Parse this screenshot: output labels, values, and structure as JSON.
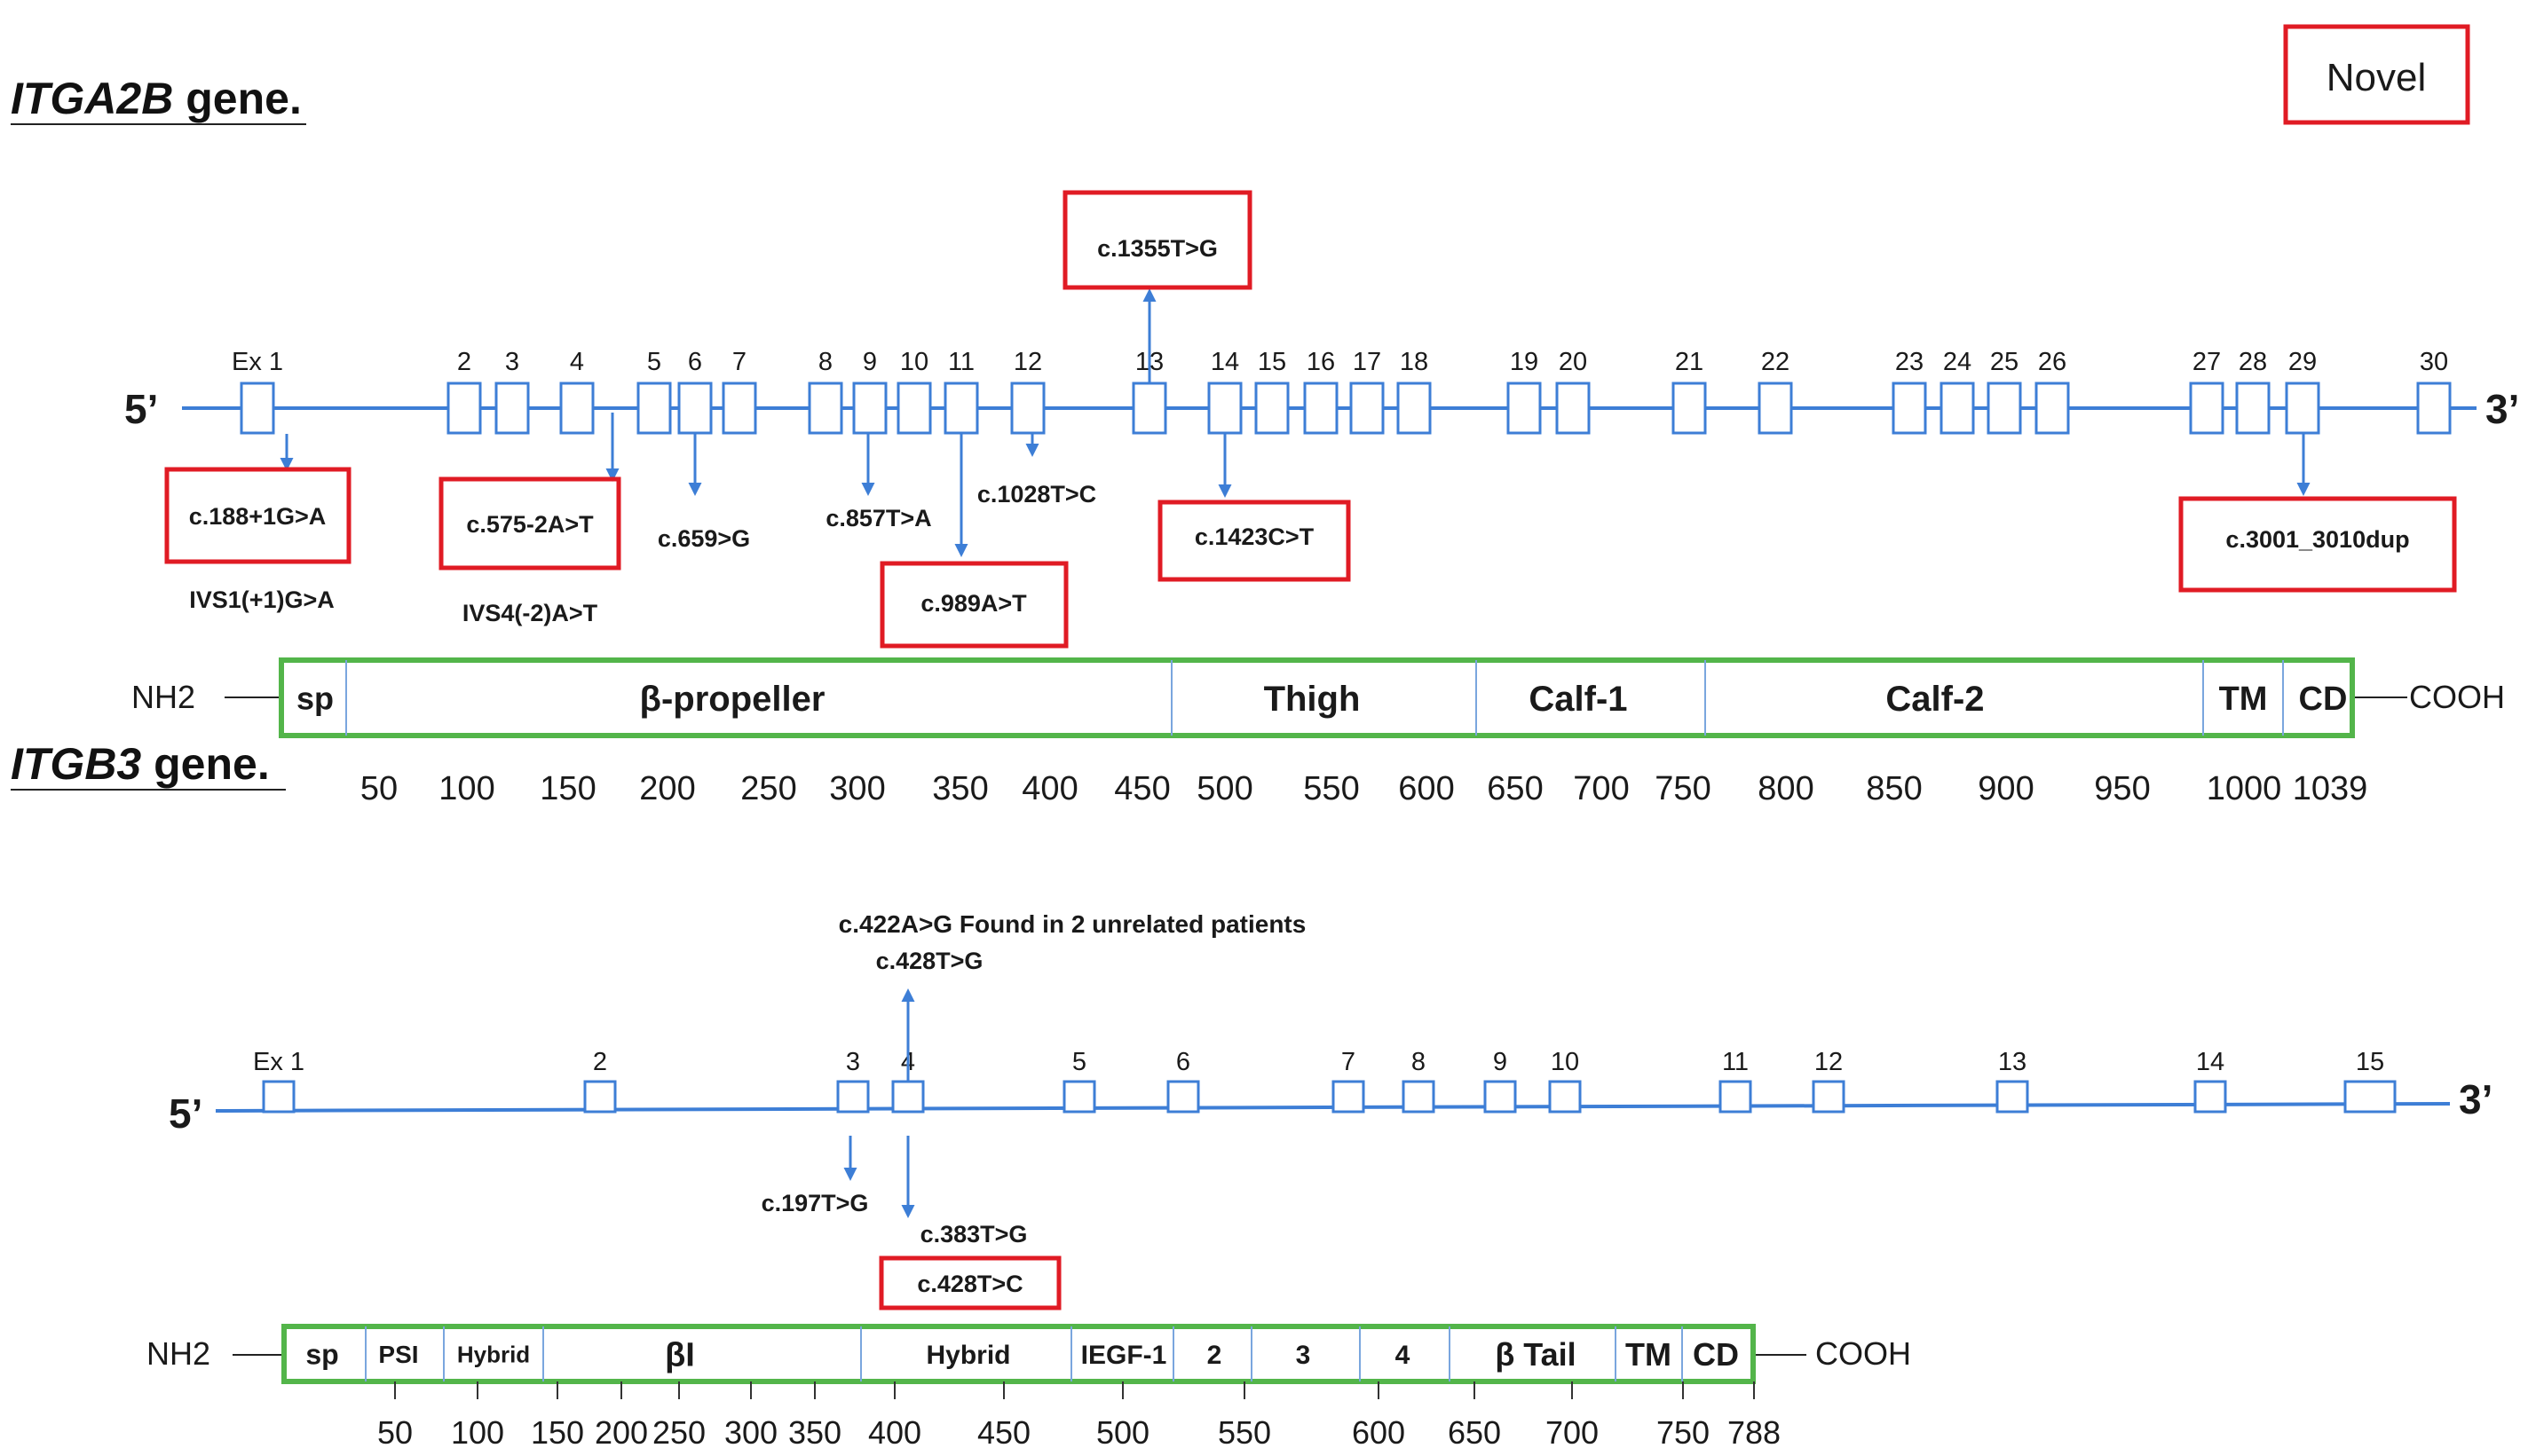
{
  "colors": {
    "line": "#3d7ed6",
    "novel": "#e01b24",
    "domain": "#53b54a"
  },
  "legend": {
    "novel_label": "Novel"
  },
  "itga2b": {
    "gene_italic": "ITGA2B",
    "gene_rest": " gene.",
    "end5": "5’",
    "end3": "3’",
    "exons": [
      "Ex 1",
      "2",
      "3",
      "4",
      "5",
      "6",
      "7",
      "8",
      "9",
      "10",
      "11",
      "12",
      "13",
      "14",
      "15",
      "16",
      "17",
      "18",
      "19",
      "20",
      "21",
      "22",
      "23",
      "24",
      "25",
      "26",
      "27",
      "28",
      "29",
      "30"
    ],
    "variants": {
      "v188": "c.188+1G>A",
      "ivs1": "IVS1(+1)G>A",
      "v575": "c.575-2A>T",
      "ivs4": "IVS4(-2)A>T",
      "v659": "c.659>G",
      "v857": "c.857T>A",
      "v989": "c.989A>T",
      "v1028": "c.1028T>C",
      "v1355": "c.1355T>G",
      "v1423": "c.1423C>T",
      "v3001": "c.3001_3010dup"
    },
    "protein": {
      "nterm": "NH2",
      "cterm": "COOH",
      "domains": [
        "sp",
        "β-propeller",
        "Thigh",
        "Calf-1",
        "Calf-2",
        "TM",
        "CD"
      ]
    },
    "scale": [
      "50",
      "100",
      "150",
      "200",
      "250",
      "300",
      "350",
      "400",
      "450",
      "500",
      "550",
      "600",
      "650",
      "700",
      "750",
      "800",
      "850",
      "900",
      "950",
      "1000",
      "1039"
    ]
  },
  "itgb3": {
    "gene_italic": "ITGB3",
    "gene_rest": " gene.",
    "end5": "5’",
    "end3": "3’",
    "exons": [
      "Ex 1",
      "2",
      "3",
      "4",
      "5",
      "6",
      "7",
      "8",
      "9",
      "10",
      "11",
      "12",
      "13",
      "14",
      "15"
    ],
    "variants": {
      "v422": "c.422A>G Found in 2 unrelated patients",
      "v428g": "c.428T>G",
      "v197": "c.197T>G",
      "v383": "c.383T>G",
      "v428c": "c.428T>C"
    },
    "protein": {
      "nterm": "NH2",
      "cterm": "COOH",
      "domains": [
        "sp",
        "PSI",
        "Hybrid",
        "βI",
        "Hybrid",
        "IEGF-1",
        "2",
        "3",
        "4",
        "β Tail",
        "TM",
        "CD"
      ]
    },
    "scale": [
      "50",
      "100",
      "150",
      "200",
      "250",
      "300",
      "350",
      "400",
      "450",
      "500",
      "550",
      "600",
      "650",
      "700",
      "750",
      "788"
    ]
  }
}
